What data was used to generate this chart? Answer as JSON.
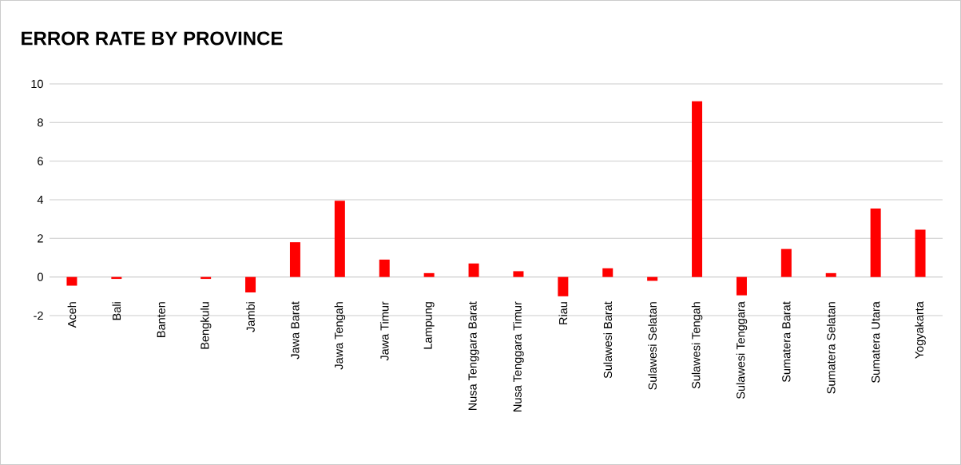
{
  "chart_data": {
    "type": "bar",
    "title": "ERROR RATE BY PROVINCE",
    "categories": [
      "Aceh",
      "Bali",
      "Banten",
      "Bengkulu",
      "Jambi",
      "Jawa Barat",
      "Jawa Tengah",
      "Jawa Timur",
      "Lampung",
      "Nusa Tenggara Barat",
      "Nusa Tenggara Timur",
      "Riau",
      "Sulawesi Barat",
      "Sulawesi Selatan",
      "Sulawesi Tengah",
      "Sulawesi Tenggara",
      "Sumatera Barat",
      "Sumatera Selatan",
      "Sumatera Utara",
      "Yogyakarta"
    ],
    "values": [
      -0.45,
      -0.1,
      0,
      -0.1,
      -0.8,
      1.8,
      3.95,
      0.9,
      0.2,
      0.7,
      0.3,
      -1.0,
      0.45,
      -0.2,
      9.1,
      -0.95,
      1.45,
      0.2,
      3.55,
      2.45
    ],
    "color": "#ff0000",
    "ylim": [
      -2,
      10
    ],
    "yticks": [
      -2,
      0,
      2,
      4,
      6,
      8,
      10
    ],
    "grid": "y"
  }
}
